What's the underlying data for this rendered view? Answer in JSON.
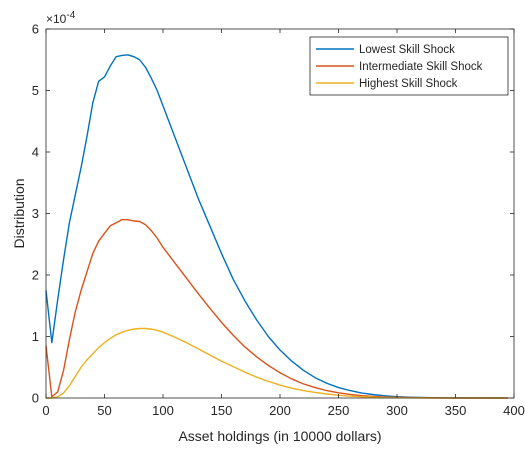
{
  "chart_data": {
    "type": "line",
    "title": "",
    "xlabel": "Asset holdings (in 10000 dollars)",
    "ylabel": "Distribution",
    "xlim": [
      0,
      400
    ],
    "ylim": [
      0,
      6
    ],
    "y_exponent_label": "×10",
    "y_exponent_power": "-4",
    "x_ticks": [
      0,
      50,
      100,
      150,
      200,
      250,
      300,
      350,
      400
    ],
    "y_ticks": [
      0,
      1,
      2,
      3,
      4,
      5,
      6
    ],
    "grid": false,
    "legend_position": "top-right",
    "x": [
      0,
      5,
      10,
      15,
      20,
      25,
      30,
      35,
      40,
      45,
      50,
      55,
      60,
      65,
      70,
      75,
      80,
      85,
      90,
      95,
      100,
      110,
      120,
      130,
      140,
      150,
      160,
      170,
      180,
      190,
      200,
      210,
      220,
      230,
      240,
      250,
      260,
      270,
      280,
      290,
      300,
      310,
      320,
      330,
      340,
      350,
      360,
      370,
      380,
      390,
      395
    ],
    "series": [
      {
        "name": "Lowest Skill Shock",
        "color": "#0072BD",
        "values": [
          1.75,
          0.9,
          1.6,
          2.25,
          2.85,
          3.3,
          3.75,
          4.25,
          4.8,
          5.15,
          5.22,
          5.4,
          5.55,
          5.57,
          5.58,
          5.55,
          5.5,
          5.38,
          5.2,
          5.0,
          4.75,
          4.25,
          3.75,
          3.25,
          2.8,
          2.35,
          1.93,
          1.58,
          1.27,
          1.0,
          0.78,
          0.6,
          0.45,
          0.33,
          0.24,
          0.17,
          0.12,
          0.08,
          0.055,
          0.035,
          0.022,
          0.014,
          0.009,
          0.005,
          0.003,
          0.002,
          0.001,
          0.0,
          0.0,
          0.0,
          0.0
        ]
      },
      {
        "name": "Intermediate Skill Shock",
        "color": "#D95319",
        "values": [
          0.85,
          0.02,
          0.1,
          0.45,
          0.95,
          1.4,
          1.75,
          2.05,
          2.35,
          2.55,
          2.68,
          2.8,
          2.85,
          2.9,
          2.9,
          2.88,
          2.87,
          2.82,
          2.72,
          2.6,
          2.45,
          2.2,
          1.95,
          1.7,
          1.46,
          1.23,
          1.02,
          0.83,
          0.67,
          0.53,
          0.41,
          0.31,
          0.23,
          0.17,
          0.12,
          0.085,
          0.058,
          0.038,
          0.025,
          0.016,
          0.01,
          0.006,
          0.004,
          0.002,
          0.001,
          0.0,
          0.0,
          0.0,
          0.0,
          0.0,
          0.0
        ]
      },
      {
        "name": "Highest Skill Shock",
        "color": "#EDB120",
        "values": [
          0.0,
          0.0,
          0.02,
          0.08,
          0.2,
          0.35,
          0.5,
          0.62,
          0.72,
          0.82,
          0.9,
          0.97,
          1.03,
          1.07,
          1.1,
          1.12,
          1.13,
          1.13,
          1.12,
          1.1,
          1.07,
          0.99,
          0.9,
          0.8,
          0.7,
          0.6,
          0.51,
          0.42,
          0.34,
          0.27,
          0.21,
          0.16,
          0.12,
          0.09,
          0.065,
          0.045,
          0.03,
          0.02,
          0.013,
          0.008,
          0.005,
          0.003,
          0.002,
          0.001,
          0.0,
          0.0,
          0.0,
          0.0,
          0.0,
          0.0,
          0.0
        ]
      }
    ]
  }
}
